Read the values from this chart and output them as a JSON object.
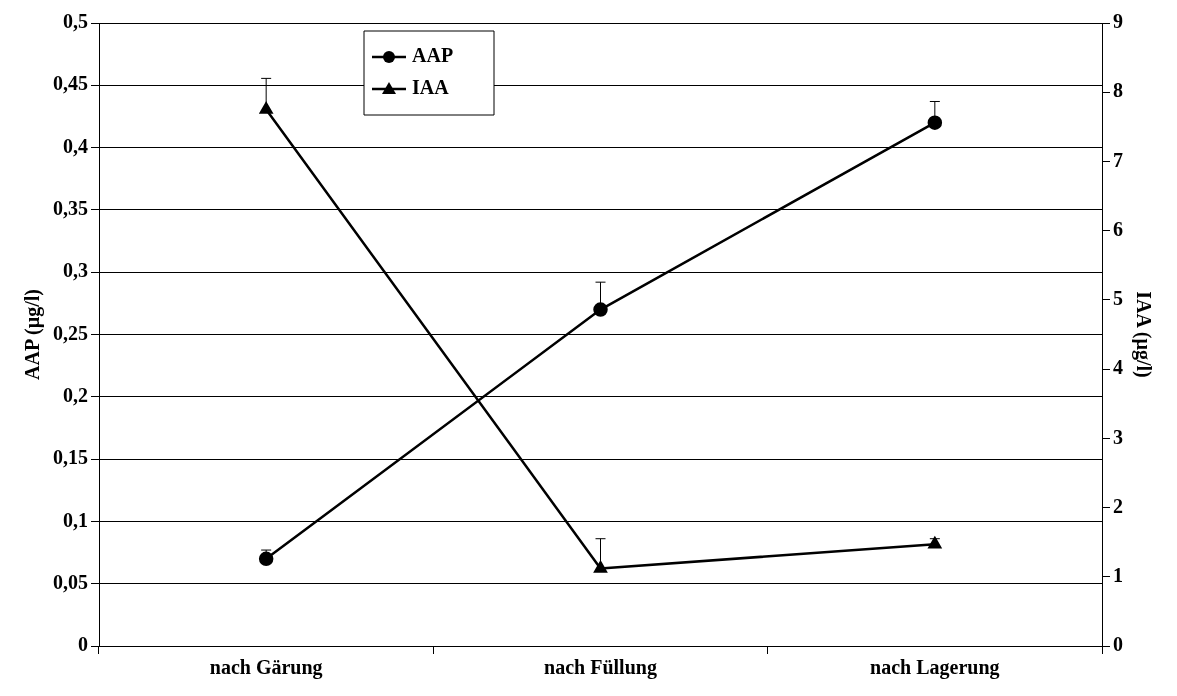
{
  "chart_data": {
    "type": "line",
    "categories": [
      "nach Gärung",
      "nach Füllung",
      "nach Lagerung"
    ],
    "ylabel": "AAP (µg/l)",
    "y2label": "IAA (µg/l)",
    "ylim": [
      0,
      0.5
    ],
    "yticks": [
      {
        "value": 0,
        "label": "0"
      },
      {
        "value": 0.05,
        "label": "0,05"
      },
      {
        "value": 0.1,
        "label": "0,1"
      },
      {
        "value": 0.15,
        "label": "0,15"
      },
      {
        "value": 0.2,
        "label": "0,2"
      },
      {
        "value": 0.25,
        "label": "0,25"
      },
      {
        "value": 0.3,
        "label": "0,3"
      },
      {
        "value": 0.35,
        "label": "0,35"
      },
      {
        "value": 0.4,
        "label": "0,4"
      },
      {
        "value": 0.45,
        "label": "0,45"
      },
      {
        "value": 0.5,
        "label": "0,5"
      }
    ],
    "y2lim": [
      0,
      9
    ],
    "y2ticks": [
      0,
      1,
      2,
      3,
      4,
      5,
      6,
      7,
      8,
      9
    ],
    "series": [
      {
        "name": "AAP",
        "color": "#000000",
        "marker": "circle",
        "values": [
          0.07,
          0.27,
          0.42
        ],
        "errors": [
          [
            0.07,
            0.077
          ],
          [
            0.27,
            0.292
          ],
          [
            0.42,
            0.437
          ]
        ]
      },
      {
        "name": "IAA",
        "color": "#000000",
        "marker": "triangle",
        "axis": "y2",
        "values": [
          7.75,
          1.12,
          1.47
        ],
        "errors": [
          [
            7.75,
            8.2
          ],
          [
            1.12,
            1.55
          ],
          [
            1.47,
            1.55
          ]
        ]
      }
    ],
    "grid": "y",
    "legend": "top left",
    "line_style": "solid"
  }
}
